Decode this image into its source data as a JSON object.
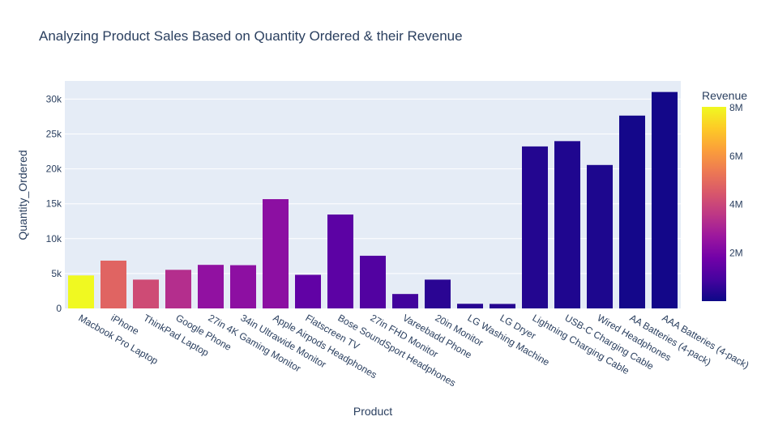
{
  "chart_data": {
    "type": "bar",
    "title": "Analyzing Product Sales Based on Quantity Ordered & their Revenue",
    "xlabel": "Product",
    "ylabel": "Quantity_Ordered",
    "ylim": [
      0,
      32600
    ],
    "y_ticks": [
      0,
      5000,
      10000,
      15000,
      20000,
      25000,
      30000
    ],
    "y_tick_labels": [
      "0",
      "5k",
      "10k",
      "15k",
      "20k",
      "25k",
      "30k"
    ],
    "grid": true,
    "categories": [
      "Macbook Pro Laptop",
      "iPhone",
      "ThinkPad Laptop",
      "Google Phone",
      "27in 4K Gaming Monitor",
      "34in Ultrawide Monitor",
      "Apple Airpods Headphones",
      "Flatscreen TV",
      "Bose SoundSport Headphones",
      "27in FHD Monitor",
      "Vareebadd Phone",
      "20in Monitor",
      "LG Washing Machine",
      "LG Dryer",
      "Lightning Charging Cable",
      "USB-C Charging Cable",
      "Wired Headphones",
      "AA Batteries (4-pack)",
      "AAA Batteries (4-pack)"
    ],
    "values": [
      4728,
      6849,
      4130,
      5532,
      6244,
      6199,
      15661,
      4819,
      13457,
      7550,
      2068,
      4129,
      666,
      646,
      23217,
      23975,
      20557,
      27635,
      31017
    ],
    "color_values": [
      8037600,
      4794300,
      4129959,
      3319200,
      2435098,
      2355558,
      2349150,
      1445700,
      1345566,
      1132424,
      827600,
      454149,
      399600,
      387600,
      347095,
      286501,
      246479,
      106118,
      92740
    ],
    "colorbar": {
      "title": "Revenue",
      "range": [
        0,
        8037600
      ],
      "ticks": [
        2000000,
        4000000,
        6000000,
        8000000
      ],
      "tick_labels": [
        "2M",
        "4M",
        "6M",
        "8M"
      ],
      "colorscale": [
        "#0d0887",
        "#46039f",
        "#7201a8",
        "#9c179e",
        "#bd3786",
        "#d8576b",
        "#ed7953",
        "#fb9f3a",
        "#fdca26",
        "#f0f921"
      ]
    },
    "plot_background": "#e5ecf6",
    "legend_placement": "right"
  }
}
